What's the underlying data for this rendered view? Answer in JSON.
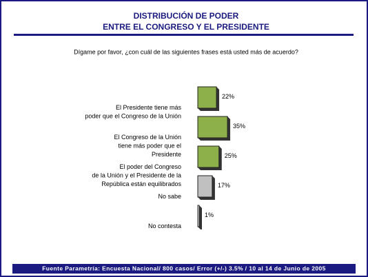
{
  "chart_data": {
    "type": "bar",
    "title": [
      "DISTRIBUCIÓN DE PODER",
      "ENTRE EL CONGRESO Y EL PRESIDENTE"
    ],
    "subtitle": "Dígame por favor, ¿con cuál de las siguientes frases está usted más de acuerdo?",
    "categories": [
      [
        "El Presidente tiene más",
        "poder que el Congreso de la Unión"
      ],
      [
        "El Congreso de la Unión",
        "tiene más poder que el",
        "Presidente"
      ],
      [
        "El poder del Congreso",
        "de la Unión y el Presidente de la",
        "República están equilibrados"
      ],
      [
        "No sabe"
      ],
      [
        "No contesta"
      ]
    ],
    "values": [
      22,
      35,
      25,
      17,
      1
    ],
    "value_labels": [
      "22%",
      "35%",
      "25%",
      "17%",
      "1%"
    ],
    "colors": [
      "#8db04a",
      "#8db04a",
      "#8db04a",
      "#c0c0c0",
      "#ffffff"
    ],
    "source": "Fuente Parametría: Encuesta Nacional/ 800 casos/ Error  (+/-)  3.5% / 10 al 14 de Junio de 2005"
  }
}
